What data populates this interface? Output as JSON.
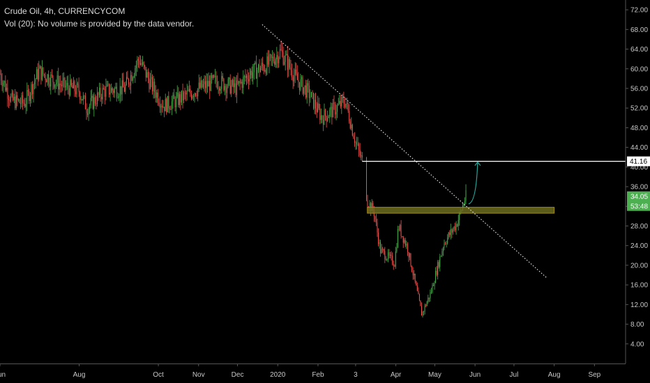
{
  "legend": {
    "title": "Crude Oil, 4h, CURRENCYCOM",
    "volume_note": "Vol (20): No volume is provided by the data vendor."
  },
  "chart_data": {
    "type": "candlestick",
    "title": "Crude Oil, 4h, CURRENCYCOM",
    "xlabel": "",
    "ylabel": "",
    "ylim": [
      0,
      74
    ],
    "y_ticks": [
      4,
      8,
      12,
      16,
      20,
      24,
      28,
      32,
      36,
      40,
      44,
      48,
      52,
      56,
      60,
      64,
      68,
      72
    ],
    "y_tick_labels": [
      "4.00",
      "8.00",
      "12.00",
      "16.00",
      "20.00",
      "24.00",
      "28.00",
      "32.00",
      "36.00",
      "40.00",
      "44.00",
      "48.00",
      "52.00",
      "56.00",
      "60.00",
      "64.00",
      "68.00",
      "72.00"
    ],
    "x_tick_labels": [
      "Jun",
      "Aug",
      "Oct",
      "Nov",
      "Dec",
      "2020",
      "Feb",
      "3",
      "Apr",
      "May",
      "Jun",
      "Jul",
      "Aug",
      "Sep"
    ],
    "x_tick_dates": [
      "2019-06-01",
      "2019-08-01",
      "2019-10-01",
      "2019-11-01",
      "2019-12-01",
      "2020-01-01",
      "2020-02-01",
      "2020-03-01",
      "2020-04-01",
      "2020-05-01",
      "2020-06-01",
      "2020-07-01",
      "2020-08-01",
      "2020-09-01"
    ],
    "x_range": [
      "2019-06-01",
      "2020-09-25"
    ],
    "price_path": [
      {
        "date": "2019-06-01",
        "price": 59.0
      },
      {
        "date": "2019-06-10",
        "price": 53.5
      },
      {
        "date": "2019-06-20",
        "price": 53.0
      },
      {
        "date": "2019-07-01",
        "price": 59.5
      },
      {
        "date": "2019-07-10",
        "price": 58.0
      },
      {
        "date": "2019-07-20",
        "price": 56.5
      },
      {
        "date": "2019-08-01",
        "price": 55.5
      },
      {
        "date": "2019-08-07",
        "price": 52.0
      },
      {
        "date": "2019-08-20",
        "price": 55.5
      },
      {
        "date": "2019-09-05",
        "price": 56.0
      },
      {
        "date": "2019-09-16",
        "price": 62.0
      },
      {
        "date": "2019-09-25",
        "price": 57.0
      },
      {
        "date": "2019-10-05",
        "price": 52.5
      },
      {
        "date": "2019-10-15",
        "price": 53.5
      },
      {
        "date": "2019-11-01",
        "price": 56.0
      },
      {
        "date": "2019-11-15",
        "price": 57.5
      },
      {
        "date": "2019-11-30",
        "price": 56.0
      },
      {
        "date": "2019-12-10",
        "price": 59.0
      },
      {
        "date": "2019-12-25",
        "price": 61.0
      },
      {
        "date": "2020-01-03",
        "price": 63.5
      },
      {
        "date": "2020-01-08",
        "price": 61.5
      },
      {
        "date": "2020-01-15",
        "price": 58.0
      },
      {
        "date": "2020-01-25",
        "price": 55.0
      },
      {
        "date": "2020-02-04",
        "price": 50.0
      },
      {
        "date": "2020-02-15",
        "price": 52.0
      },
      {
        "date": "2020-02-22",
        "price": 53.5
      },
      {
        "date": "2020-03-01",
        "price": 45.0
      },
      {
        "date": "2020-03-06",
        "price": 41.2
      },
      {
        "date": "2020-03-10",
        "price": 33.0
      },
      {
        "date": "2020-03-15",
        "price": 31.0
      },
      {
        "date": "2020-03-20",
        "price": 23.0
      },
      {
        "date": "2020-03-31",
        "price": 20.5
      },
      {
        "date": "2020-04-03",
        "price": 28.0
      },
      {
        "date": "2020-04-10",
        "price": 23.5
      },
      {
        "date": "2020-04-21",
        "price": 10.0
      },
      {
        "date": "2020-04-28",
        "price": 14.5
      },
      {
        "date": "2020-05-08",
        "price": 24.5
      },
      {
        "date": "2020-05-18",
        "price": 28.5
      },
      {
        "date": "2020-05-25",
        "price": 34.05
      }
    ],
    "current_price": 34.05,
    "current_price_label": "34.05",
    "countdown_label": "53:48",
    "horizontal_line": {
      "price": 41.16,
      "label": "41.16"
    },
    "support_zone": {
      "low": 30.6,
      "high": 31.8,
      "start": "2020-03-10",
      "end": "2020-08-01"
    },
    "trendline": {
      "start": {
        "date": "2019-12-20",
        "price": 69.0
      },
      "end": {
        "date": "2020-07-26",
        "price": 17.5
      }
    },
    "projection_arrow": {
      "start": {
        "date": "2020-05-27",
        "price": 32.5
      },
      "end": {
        "date": "2020-06-03",
        "price": 41.0
      }
    },
    "colors": {
      "background": "#000000",
      "up_candle": "#4caf50",
      "down_candle": "#ef5350",
      "horizontal_line": "#ffffff",
      "trendline": "#e0e0e0",
      "support_zone_fill": "#6b6b1e",
      "support_zone_border": "#a08c1e",
      "arrow": "#26a69a",
      "price_label": "#4caf50",
      "axis_text": "#c8c8c8"
    },
    "grid": false,
    "legend": "top-left"
  }
}
